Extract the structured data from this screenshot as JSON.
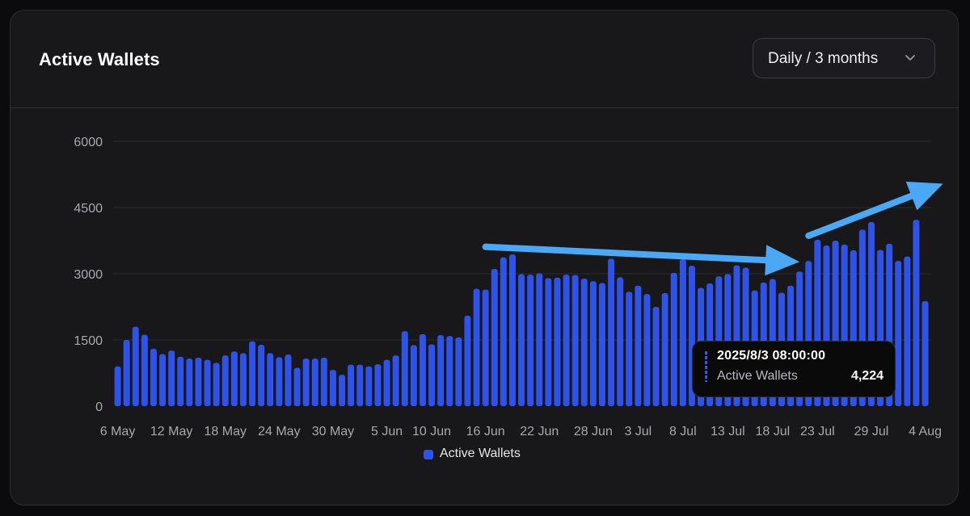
{
  "card": {
    "title": "Active Wallets",
    "range_select": {
      "value": "Daily / 3 months",
      "icon": "chevron-down-icon"
    }
  },
  "tooltip": {
    "date": "2025/8/3 08:00:00",
    "series": "Active Wallets",
    "value": "4,224"
  },
  "colors": {
    "bar": "#2f52e8",
    "annotation_arrow": "#4aa8f5",
    "background": "#18181b"
  },
  "chart_data": {
    "type": "bar",
    "title": "Active Wallets",
    "xlabel": "",
    "ylabel": "",
    "ylim": [
      0,
      6000
    ],
    "yticks": [
      0,
      1500,
      3000,
      4500,
      6000
    ],
    "ytick_labels": [
      "0",
      "1500",
      "3000",
      "4500",
      "6000"
    ],
    "grid": true,
    "legend": "bottom-center",
    "xtick_labels": [
      {
        "label": "6 May",
        "index": 0
      },
      {
        "label": "12 May",
        "index": 6
      },
      {
        "label": "18 May",
        "index": 12
      },
      {
        "label": "24 May",
        "index": 18
      },
      {
        "label": "30 May",
        "index": 24
      },
      {
        "label": "5 Jun",
        "index": 30
      },
      {
        "label": "10 Jun",
        "index": 35
      },
      {
        "label": "16 Jun",
        "index": 41
      },
      {
        "label": "22 Jun",
        "index": 47
      },
      {
        "label": "28 Jun",
        "index": 53
      },
      {
        "label": "3 Jul",
        "index": 58
      },
      {
        "label": "8 Jul",
        "index": 63
      },
      {
        "label": "13 Jul",
        "index": 68
      },
      {
        "label": "18 Jul",
        "index": 73
      },
      {
        "label": "23 Jul",
        "index": 78
      },
      {
        "label": "29 Jul",
        "index": 84
      },
      {
        "label": "4 Aug",
        "index": 90
      }
    ],
    "series": [
      {
        "name": "Active Wallets",
        "values": [
          900,
          1500,
          1800,
          1620,
          1300,
          1180,
          1260,
          1120,
          1080,
          1100,
          1050,
          980,
          1150,
          1240,
          1200,
          1470,
          1390,
          1200,
          1110,
          1170,
          870,
          1080,
          1080,
          1100,
          820,
          710,
          940,
          940,
          900,
          950,
          1050,
          1150,
          1700,
          1380,
          1630,
          1400,
          1610,
          1590,
          1560,
          2050,
          2660,
          2640,
          3110,
          3370,
          3440,
          2990,
          2980,
          3010,
          2900,
          2910,
          2980,
          2970,
          2890,
          2830,
          2790,
          3340,
          2920,
          2590,
          2730,
          2540,
          2250,
          2560,
          3020,
          3330,
          3180,
          2680,
          2780,
          2940,
          2990,
          3190,
          3140,
          2620,
          2800,
          2880,
          2570,
          2730,
          3050,
          3290,
          3770,
          3640,
          3750,
          3660,
          3530,
          4000,
          4170,
          3540,
          3680,
          3290,
          3390,
          4224,
          2380
        ]
      }
    ],
    "annotations": [
      {
        "type": "arrow",
        "from": {
          "index": 41,
          "value": 3610
        },
        "to": {
          "index": 76,
          "value": 3270
        }
      },
      {
        "type": "arrow",
        "from": {
          "index": 77,
          "value": 3860
        },
        "to": {
          "index": 92,
          "value": 5040
        }
      }
    ]
  }
}
